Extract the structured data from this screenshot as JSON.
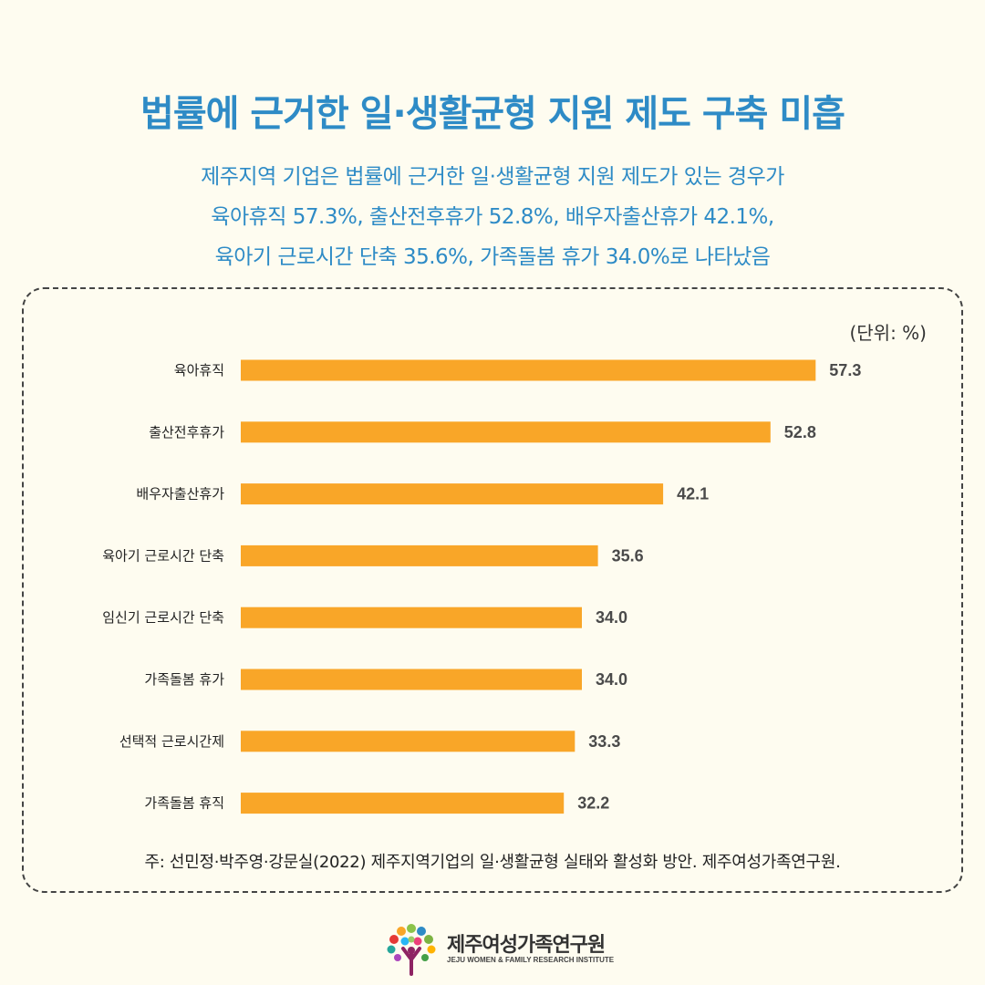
{
  "title": "법률에 근거한 일·생활균형 지원 제도 구축 미흡",
  "subtitle_lines": [
    "제주지역 기업은 법률에 근거한 일·생활균형 지원 제도가 있는 경우가",
    "육아휴직 57.3%, 출산전후휴가 52.8%, 배우자출산휴가 42.1%,",
    "육아기 근로시간 단축 35.6%, 가족돌봄 휴가 34.0%로 나타났음"
  ],
  "colors": {
    "title": "#2e8bc6",
    "bar": "#f9a628",
    "background": "#fefcf0"
  },
  "chart_data": {
    "type": "bar",
    "orientation": "horizontal",
    "unit_label": "(단위: %)",
    "categories": [
      "육아휴직",
      "출산전후휴가",
      "배우자출산휴가",
      "육아기 근로시간 단축",
      "임신기 근로시간 단축",
      "가족돌봄 휴가",
      "선택적 근로시간제",
      "가족돌봄 휴직"
    ],
    "values": [
      57.3,
      52.8,
      42.1,
      35.6,
      34.0,
      34.0,
      33.3,
      32.2
    ],
    "value_labels": [
      "57.3",
      "52.8",
      "42.1",
      "35.6",
      "34.0",
      "34.0",
      "33.3",
      "32.2"
    ],
    "xlim": [
      0,
      60
    ],
    "grid": false,
    "legend": "none"
  },
  "footnote": "주: 선민정·박주영·강문실(2022) 제주지역기업의 일·생활균형 실태와 활성화 방안. 제주여성가족연구원.",
  "logo": {
    "name": "제주여성가족연구원",
    "subtitle": "JEJU WOMEN & FAMILY RESEARCH INSTITUTE",
    "icon": "tree-logo-icon"
  }
}
